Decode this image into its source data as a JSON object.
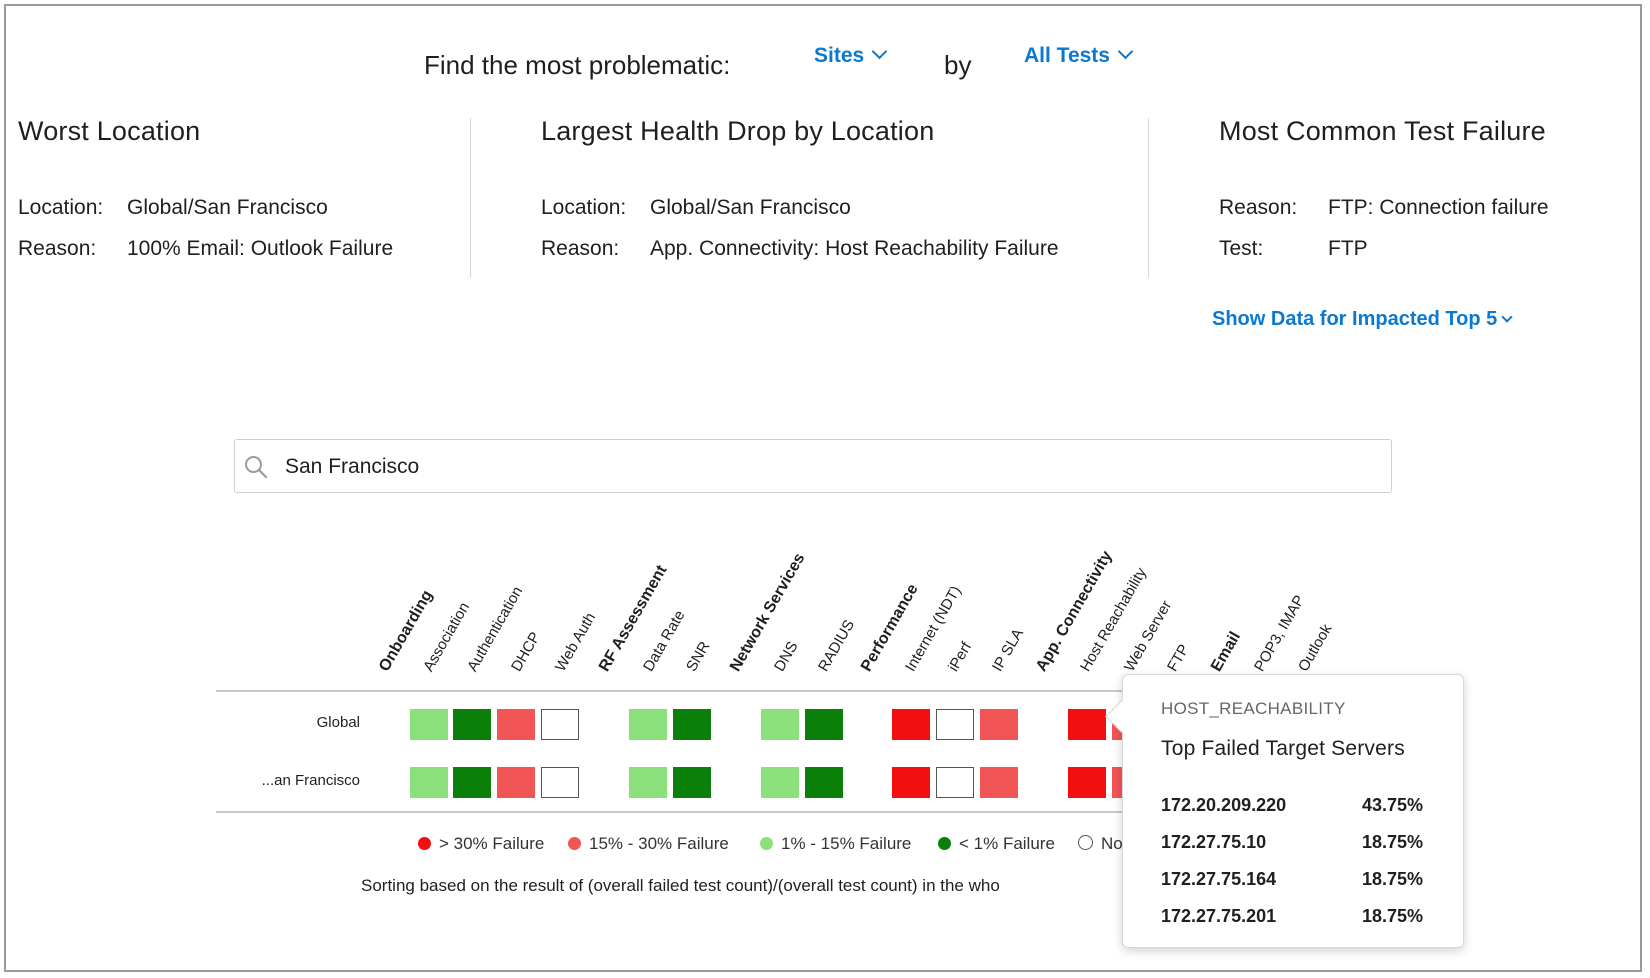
{
  "finder": {
    "prefix": "Find the most problematic:",
    "scope": "Sites",
    "by": "by",
    "tests": "All Tests"
  },
  "summary": [
    {
      "title": "Worst Location",
      "row1_key": "Location:",
      "row1_val": "Global/San Francisco",
      "row2_key": "Reason:",
      "row2_val": "100% Email: Outlook Failure"
    },
    {
      "title": "Largest Health Drop by Location",
      "row1_key": "Location:",
      "row1_val": "Global/San Francisco",
      "row2_key": "Reason:",
      "row2_val": "App. Connectivity: Host Reachability Failure"
    },
    {
      "title": "Most Common Test Failure",
      "row1_key": "Reason:",
      "row1_val": "FTP: Connection failure",
      "row2_key": "Test:",
      "row2_val": "FTP"
    }
  ],
  "show_link": "Show Data for Impacted Top 5",
  "search": {
    "value": "San Francisco"
  },
  "heatmap": {
    "headers": [
      {
        "label": "Onboarding",
        "group": true
      },
      {
        "label": "Association",
        "group": false
      },
      {
        "label": "Authentication",
        "group": false
      },
      {
        "label": "DHCP",
        "group": false
      },
      {
        "label": "Web Auth",
        "group": false
      },
      {
        "label": "RF Assessment",
        "group": true
      },
      {
        "label": "Data Rate",
        "group": false
      },
      {
        "label": "SNR",
        "group": false
      },
      {
        "label": "Network Services",
        "group": true
      },
      {
        "label": "DNS",
        "group": false
      },
      {
        "label": "RADIUS",
        "group": false
      },
      {
        "label": "Performance",
        "group": true
      },
      {
        "label": "Internet (NDT)",
        "group": false
      },
      {
        "label": "iPerf",
        "group": false
      },
      {
        "label": "IP SLA",
        "group": false
      },
      {
        "label": "App. Connectivity",
        "group": true
      },
      {
        "label": "Host Reachability",
        "group": false
      },
      {
        "label": "Web Server",
        "group": false
      },
      {
        "label": "FTP",
        "group": false
      },
      {
        "label": "Email",
        "group": true
      },
      {
        "label": "POP3, IMAP",
        "group": false
      },
      {
        "label": "Outlook",
        "group": false
      }
    ],
    "rows": [
      {
        "label": "Global",
        "cells": [
          "lgreen",
          "dgreen",
          "lred",
          "none",
          "lgreen",
          "dgreen",
          "lgreen",
          "dgreen",
          "red",
          "none",
          "lred",
          "red",
          "lred"
        ]
      },
      {
        "label": "...an Francisco",
        "cells": [
          "lgreen",
          "dgreen",
          "lred",
          "none",
          "lgreen",
          "dgreen",
          "lgreen",
          "dgreen",
          "red",
          "none",
          "lred",
          "red",
          "lred"
        ]
      }
    ],
    "colors": {
      "red": "#f20f0f",
      "lred": "#f25555",
      "lgreen": "#8be07c",
      "dgreen": "#0a7f0a"
    }
  },
  "legend": [
    {
      "label": "> 30% Failure",
      "color": "#f20f0f"
    },
    {
      "label": "15% - 30% Failure",
      "color": "#f25555"
    },
    {
      "label": "1% - 15% Failure",
      "color": "#8be07c"
    },
    {
      "label": "< 1% Failure",
      "color": "#0a7f0a"
    },
    {
      "label": "No",
      "color": "#ffffff"
    }
  ],
  "sort_note": "Sorting based on the result of (overall failed test count)/(overall test count) in the who",
  "popover": {
    "category": "HOST_REACHABILITY",
    "title": "Top Failed Target Servers",
    "servers": [
      {
        "ip": "172.20.209.220",
        "pct": "43.75%"
      },
      {
        "ip": "172.27.75.10",
        "pct": "18.75%"
      },
      {
        "ip": "172.27.75.164",
        "pct": "18.75%"
      },
      {
        "ip": "172.27.75.201",
        "pct": "18.75%"
      }
    ]
  }
}
